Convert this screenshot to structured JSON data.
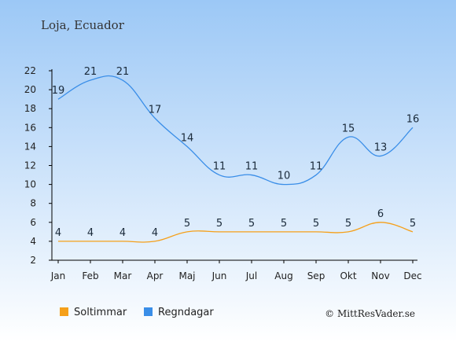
{
  "colors": {
    "background_top": "#9cc8f6",
    "background_bottom": "#ffffff",
    "sun_series": "#f5a01a",
    "rain_series": "#3a8ee8",
    "axis": "#000000"
  },
  "chart_data": {
    "type": "line",
    "title": "Loja, Ecuador",
    "categories": [
      "Jan",
      "Feb",
      "Mar",
      "Apr",
      "Maj",
      "Jun",
      "Jul",
      "Aug",
      "Sep",
      "Okt",
      "Nov",
      "Dec"
    ],
    "yticks": [
      2,
      4,
      6,
      8,
      10,
      12,
      14,
      16,
      18,
      20,
      22
    ],
    "ylim": [
      2,
      22
    ],
    "grid": false,
    "legend_position": "bottom-left",
    "series": [
      {
        "name": "Soltimmar",
        "color": "#f5a01a",
        "values": [
          4,
          4,
          4,
          4,
          5,
          5,
          5,
          5,
          5,
          5,
          6,
          5
        ]
      },
      {
        "name": "Regndagar",
        "color": "#3a8ee8",
        "values": [
          19,
          21,
          21,
          17,
          14,
          11,
          11,
          10,
          11,
          15,
          13,
          16
        ]
      }
    ],
    "credit": "© MittResVader.se"
  }
}
